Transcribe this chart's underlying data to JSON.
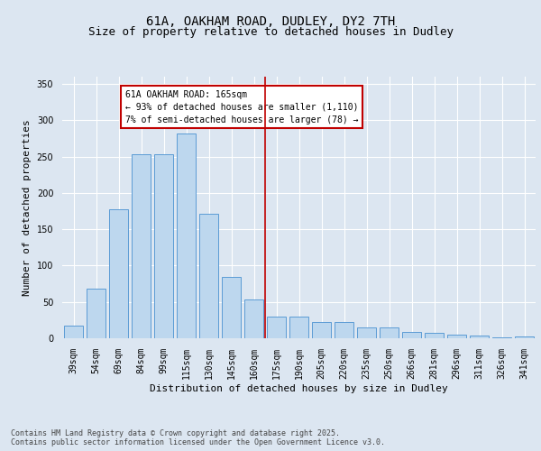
{
  "title": "61A, OAKHAM ROAD, DUDLEY, DY2 7TH",
  "subtitle": "Size of property relative to detached houses in Dudley",
  "xlabel": "Distribution of detached houses by size in Dudley",
  "ylabel": "Number of detached properties",
  "categories": [
    "39sqm",
    "54sqm",
    "69sqm",
    "84sqm",
    "99sqm",
    "115sqm",
    "130sqm",
    "145sqm",
    "160sqm",
    "175sqm",
    "190sqm",
    "205sqm",
    "220sqm",
    "235sqm",
    "250sqm",
    "266sqm",
    "281sqm",
    "296sqm",
    "311sqm",
    "326sqm",
    "341sqm"
  ],
  "values": [
    18,
    68,
    178,
    253,
    253,
    282,
    171,
    85,
    53,
    30,
    30,
    22,
    22,
    15,
    15,
    9,
    8,
    5,
    4,
    1,
    2
  ],
  "bar_color": "#bdd7ee",
  "bar_edge_color": "#5b9bd5",
  "background_color": "#dce6f1",
  "vline_color": "#c00000",
  "annotation_text": "61A OAKHAM ROAD: 165sqm\n← 93% of detached houses are smaller (1,110)\n7% of semi-detached houses are larger (78) →",
  "annotation_box_color": "#c00000",
  "ylim": [
    0,
    360
  ],
  "yticks": [
    0,
    50,
    100,
    150,
    200,
    250,
    300,
    350
  ],
  "footer": "Contains HM Land Registry data © Crown copyright and database right 2025.\nContains public sector information licensed under the Open Government Licence v3.0.",
  "title_fontsize": 10,
  "subtitle_fontsize": 9,
  "axis_label_fontsize": 8,
  "tick_fontsize": 7,
  "annotation_fontsize": 7,
  "footer_fontsize": 6
}
